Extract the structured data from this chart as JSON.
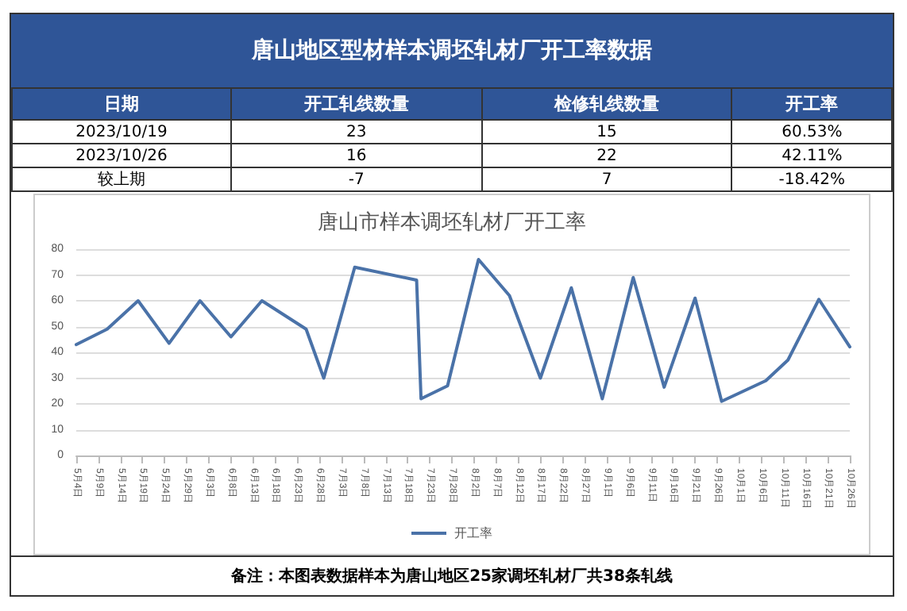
{
  "chart_data": [
    {
      "type": "other",
      "title": "唐山地区型材样本调坯轧材厂开工率数据",
      "annotations": [
        "日期",
        "开工轧线数量",
        "检修轧线数量",
        "开工率",
        "2023/10/19",
        "23",
        "15",
        "60.53%",
        "2023/10/26",
        "16",
        "22",
        "42.11%",
        "较上期",
        "-7",
        "7",
        "-18.42%"
      ]
    },
    {
      "type": "line",
      "title": "唐山市样本调坯轧材厂开工率",
      "x": [
        "--05-04",
        "--05-11",
        "--05-18",
        "--05-25",
        "--06-01",
        "--06-08",
        "--06-15",
        "--06-25",
        "--06-29",
        "--07-06",
        "--07-20",
        "--07-21",
        "--07-27",
        "--08-03",
        "--08-10",
        "--08-17",
        "--08-24",
        "--08-31",
        "--09-07",
        "--09-14",
        "--09-21",
        "--09-27",
        "--10-07",
        "--10-12",
        "--10-19",
        "--10-26"
      ],
      "series": [
        {
          "name": "开工率",
          "color": "#4a72a8",
          "values": [
            43,
            49,
            60,
            43.5,
            60,
            46,
            60,
            49,
            30,
            73,
            68,
            22,
            27,
            76,
            62,
            30,
            65,
            22,
            69,
            26.5,
            61,
            21,
            29,
            37,
            60.53,
            42.11
          ]
        }
      ],
      "xlim": [
        "--05-04",
        "--10-26"
      ],
      "xticks": [
        {
          "value": "--05-04",
          "label": "5月4日"
        },
        {
          "value": "--05-09",
          "label": "5月9日"
        },
        {
          "value": "--05-14",
          "label": "5月14日"
        },
        {
          "value": "--05-19",
          "label": "5月19日"
        },
        {
          "value": "--05-24",
          "label": "5月24日"
        },
        {
          "value": "--05-29",
          "label": "5月29日"
        },
        {
          "value": "--06-03",
          "label": "6月3日"
        },
        {
          "value": "--06-08",
          "label": "6月8日"
        },
        {
          "value": "--06-13",
          "label": "6月13日"
        },
        {
          "value": "--06-18",
          "label": "6月18日"
        },
        {
          "value": "--06-23",
          "label": "6月23日"
        },
        {
          "value": "--06-28",
          "label": "6月28日"
        },
        {
          "value": "--07-03",
          "label": "7月3日"
        },
        {
          "value": "--07-08",
          "label": "7月8日"
        },
        {
          "value": "--07-13",
          "label": "7月13日"
        },
        {
          "value": "--07-18",
          "label": "7月18日"
        },
        {
          "value": "--07-23",
          "label": "7月23日"
        },
        {
          "value": "--07-28",
          "label": "7月28日"
        },
        {
          "value": "--08-02",
          "label": "8月2日"
        },
        {
          "value": "--08-07",
          "label": "8月7日"
        },
        {
          "value": "--08-12",
          "label": "8月12日"
        },
        {
          "value": "--08-17",
          "label": "8月17日"
        },
        {
          "value": "--08-22",
          "label": "8月22日"
        },
        {
          "value": "--08-27",
          "label": "8月27日"
        },
        {
          "value": "--09-01",
          "label": "9月1日"
        },
        {
          "value": "--09-06",
          "label": "9月6日"
        },
        {
          "value": "--09-11",
          "label": "9月11日"
        },
        {
          "value": "--09-16",
          "label": "9月16日"
        },
        {
          "value": "--09-21",
          "label": "9月21日"
        },
        {
          "value": "--09-26",
          "label": "9月26日"
        },
        {
          "value": "--10-01",
          "label": "10月1日"
        },
        {
          "value": "--10-06",
          "label": "10月6日"
        },
        {
          "value": "--10-11",
          "label": "10月11日"
        },
        {
          "value": "--10-16",
          "label": "10月16日"
        },
        {
          "value": "--10-21",
          "label": "10月21日"
        },
        {
          "value": "--10-26",
          "label": "10月26日"
        }
      ],
      "ylim": [
        0,
        80
      ],
      "yticks": [
        0,
        10,
        20,
        30,
        40,
        50,
        60,
        70,
        80
      ],
      "grid": "y",
      "legend": "bottom",
      "marker": "none",
      "line_style": "solid",
      "annotations": [
        "备注：本图表数据样本为唐山地区25家调坯轧材厂共38条轧线"
      ]
    }
  ]
}
